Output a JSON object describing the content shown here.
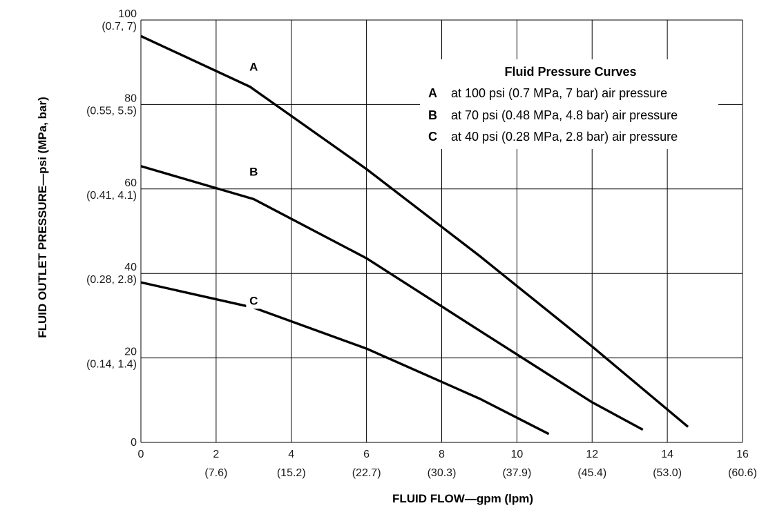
{
  "chart_data": {
    "type": "line",
    "xlabel": "FLUID FLOW—gpm (lpm)",
    "ylabel": "FLUID OUTLET PRESSURE—psi (MPa, bar)",
    "xlim": [
      0,
      16
    ],
    "ylim": [
      0,
      100
    ],
    "grid": true,
    "legend_placement": "top-right",
    "x_ticks": [
      {
        "value": 0,
        "label": "0",
        "sub": ""
      },
      {
        "value": 2,
        "label": "2",
        "sub": "(7.6)"
      },
      {
        "value": 4,
        "label": "4",
        "sub": "(15.2)"
      },
      {
        "value": 6,
        "label": "6",
        "sub": "(22.7)"
      },
      {
        "value": 8,
        "label": "8",
        "sub": "(30.3)"
      },
      {
        "value": 10,
        "label": "10",
        "sub": "(37.9)"
      },
      {
        "value": 12,
        "label": "12",
        "sub": "(45.4)"
      },
      {
        "value": 14,
        "label": "14",
        "sub": "(53.0)"
      },
      {
        "value": 16,
        "label": "16",
        "sub": "(60.6)"
      }
    ],
    "y_ticks": [
      {
        "value": 0,
        "label": "0",
        "sub": ""
      },
      {
        "value": 20,
        "label": "20",
        "sub": "(0.14, 1.4)"
      },
      {
        "value": 40,
        "label": "40",
        "sub": "(0.28, 2.8)"
      },
      {
        "value": 60,
        "label": "60",
        "sub": "(0.41, 4.1)"
      },
      {
        "value": 80,
        "label": "80",
        "sub": "(0.55, 5.5)"
      },
      {
        "value": 100,
        "label": "100",
        "sub": "(0.7, 7)"
      }
    ],
    "legend": {
      "title": "Fluid Pressure Curves",
      "entries": [
        {
          "key": "A",
          "text": "at 100 psi (0.7 MPa, 7 bar) air pressure"
        },
        {
          "key": "B",
          "text": "at 70 psi (0.48 MPa, 4.8 bar) air pressure"
        },
        {
          "key": "C",
          "text": "at 40 psi (0.28 MPa, 2.8 bar) air pressure"
        }
      ]
    },
    "series": [
      {
        "name": "A",
        "x": [
          0,
          2.9,
          6.0,
          9.0,
          12.0,
          14.55
        ],
        "y": [
          96.2,
          84.2,
          64.7,
          44.2,
          22.7,
          3.7
        ]
      },
      {
        "name": "B",
        "x": [
          0,
          3.0,
          6.0,
          9.0,
          12.0,
          13.35
        ],
        "y": [
          65.4,
          57.6,
          43.6,
          26.5,
          9.5,
          3.0
        ]
      },
      {
        "name": "C",
        "x": [
          0,
          3.0,
          6.0,
          9.0,
          10.85
        ],
        "y": [
          37.9,
          31.9,
          22.2,
          10.4,
          2.0
        ]
      }
    ],
    "curve_label_at": [
      {
        "key": "A",
        "x": 3.0,
        "y": 89.0
      },
      {
        "key": "B",
        "x": 3.0,
        "y": 64.1
      },
      {
        "key": "C",
        "x": 3.0,
        "y": 33.6
      }
    ]
  }
}
